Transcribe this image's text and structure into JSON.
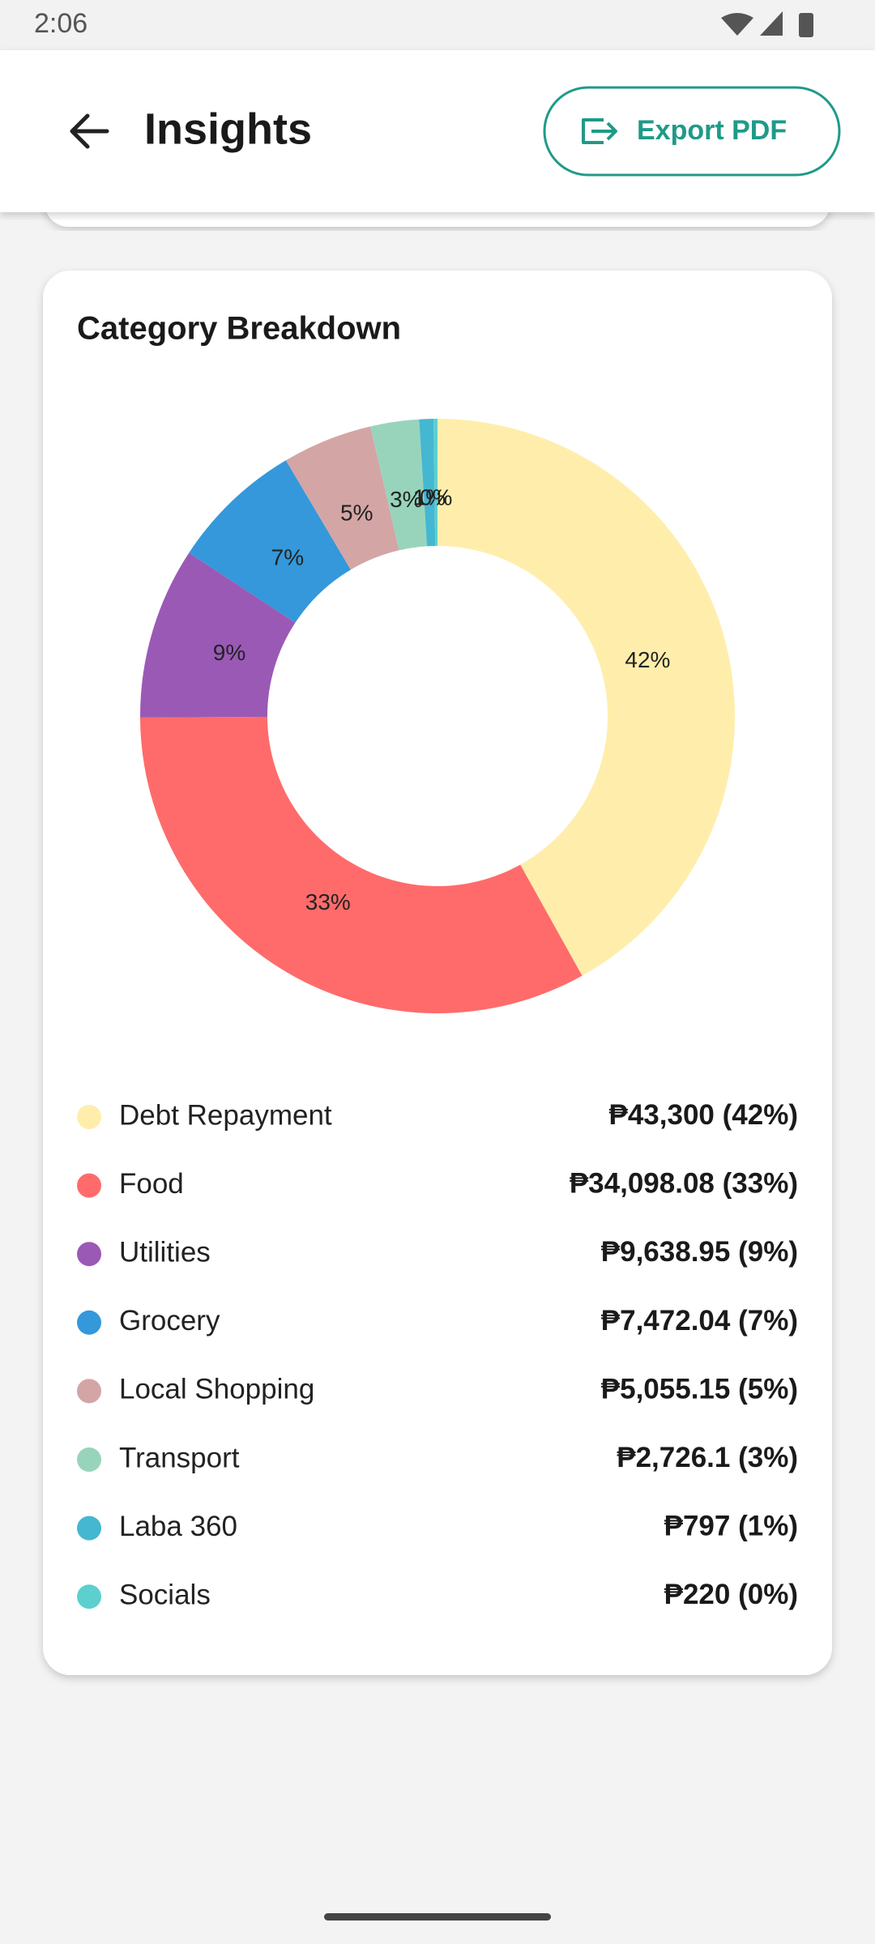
{
  "status_bar": {
    "time": "2:06"
  },
  "header": {
    "title": "Insights",
    "export_button": "Export PDF"
  },
  "chart_data": {
    "type": "pie",
    "title": "Category Breakdown",
    "categories": [
      "Debt Repayment",
      "Food",
      "Utilities",
      "Grocery",
      "Local Shopping",
      "Transport",
      "Laba 360",
      "Socials"
    ],
    "values": [
      43300,
      34098.08,
      9638.95,
      7472.04,
      5055.15,
      2726.1,
      797,
      220
    ],
    "value_labels": [
      "₱43,300",
      "₱34,098.08",
      "₱9,638.95",
      "₱7,472.04",
      "₱5,055.15",
      "₱2,726.1",
      "₱797",
      "₱220"
    ],
    "slice_labels": [
      "42%",
      "33%",
      "9%",
      "7%",
      "5%",
      "3%",
      "1%",
      "0%"
    ],
    "legend_shares": [
      "(42%)",
      "(33%)",
      "(9%)",
      "(7%)",
      "(5%)",
      "(3%)",
      "(1%)",
      "(0%)"
    ],
    "colors": [
      "#ffeeab",
      "#ff6b6b",
      "#9b59b6",
      "#3498db",
      "#d4a5a5",
      "#98d4bb",
      "#45b7d1",
      "#5ccfcf"
    ]
  }
}
